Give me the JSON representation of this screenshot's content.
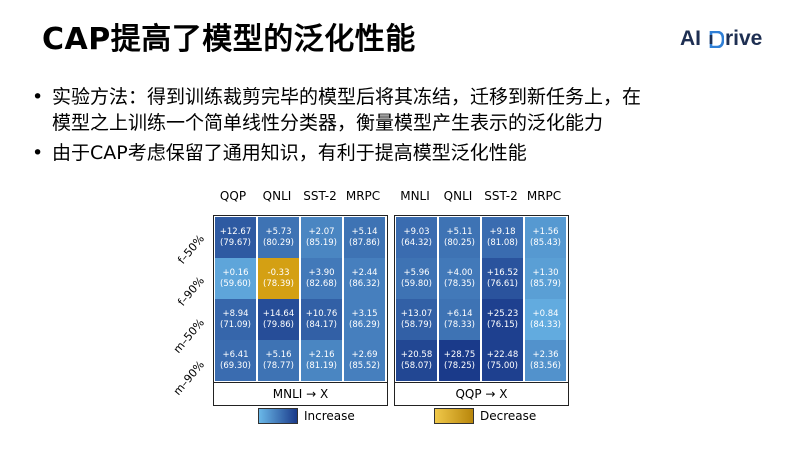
{
  "slide": {
    "title": "CAP提高了模型的泛化性能",
    "logo_text": "AI",
    "logo_text2": "rive",
    "bullets": [
      {
        "lines": [
          "实验方法：得到训练裁剪完毕的模型后将其冻结，迁移到新任务上，在",
          "模型之上训练一个简单线性分类器，衡量模型产生表示的泛化能力"
        ]
      },
      {
        "lines": [
          "由于CAP考虑保留了通用知识，有利于提高模型泛化性能"
        ]
      }
    ]
  },
  "colors": {
    "increase_dark": "#1a3a8a",
    "increase_light": "#6ab8e8",
    "decrease": "#d4a013"
  },
  "chart_data": [
    {
      "type": "heatmap",
      "xlabel": "MNLI → X",
      "columns": [
        "QQP",
        "QNLI",
        "SST-2",
        "MRPC"
      ],
      "rows": [
        "f–50%",
        "f–90%",
        "m–50%",
        "m–90%"
      ],
      "delta": [
        [
          "+12.67",
          "+5.73",
          "+2.07",
          "+5.14"
        ],
        [
          "+0.16",
          "-0.33",
          "+3.90",
          "+2.44"
        ],
        [
          "+8.94",
          "+14.64",
          "+10.76",
          "+3.15"
        ],
        [
          "+6.41",
          "+5.16",
          "+2.16",
          "+2.69"
        ]
      ],
      "value": [
        [
          "(79.67)",
          "(80.29)",
          "(85.19)",
          "(87.86)"
        ],
        [
          "(59.60)",
          "(78.39)",
          "(82.68)",
          "(86.32)"
        ],
        [
          "(71.09)",
          "(79.86)",
          "(84.17)",
          "(86.29)"
        ],
        [
          "(69.30)",
          "(78.77)",
          "(81.19)",
          "(85.52)"
        ]
      ],
      "intensity": [
        [
          0.75,
          0.55,
          0.4,
          0.55
        ],
        [
          0.15,
          -1,
          0.5,
          0.45
        ],
        [
          0.65,
          0.85,
          0.7,
          0.45
        ],
        [
          0.6,
          0.55,
          0.4,
          0.45
        ]
      ]
    },
    {
      "type": "heatmap",
      "xlabel": "QQP → X",
      "columns": [
        "MNLI",
        "QNLI",
        "SST-2",
        "MRPC"
      ],
      "rows": [
        "f–50%",
        "f–90%",
        "m–50%",
        "m–90%"
      ],
      "delta": [
        [
          "+9.03",
          "+5.11",
          "+9.18",
          "+1.56"
        ],
        [
          "+5.96",
          "+4.00",
          "+16.52",
          "+1.30"
        ],
        [
          "+13.07",
          "+6.14",
          "+25.23",
          "+0.84"
        ],
        [
          "+20.58",
          "+28.75",
          "+22.48",
          "+2.36"
        ]
      ],
      "value": [
        [
          "(64.32)",
          "(80.25)",
          "(81.08)",
          "(85.43)"
        ],
        [
          "(59.80)",
          "(78.35)",
          "(76.61)",
          "(85.79)"
        ],
        [
          "(58.79)",
          "(78.33)",
          "(76.15)",
          "(84.33)"
        ],
        [
          "(58.07)",
          "(78.25)",
          "(75.00)",
          "(83.56)"
        ]
      ],
      "intensity": [
        [
          0.6,
          0.55,
          0.6,
          0.25
        ],
        [
          0.55,
          0.5,
          0.8,
          0.2
        ],
        [
          0.7,
          0.55,
          0.95,
          0.1
        ],
        [
          0.9,
          1.0,
          0.95,
          0.3
        ]
      ]
    }
  ],
  "legend": {
    "increase": "Increase",
    "decrease": "Decrease"
  }
}
